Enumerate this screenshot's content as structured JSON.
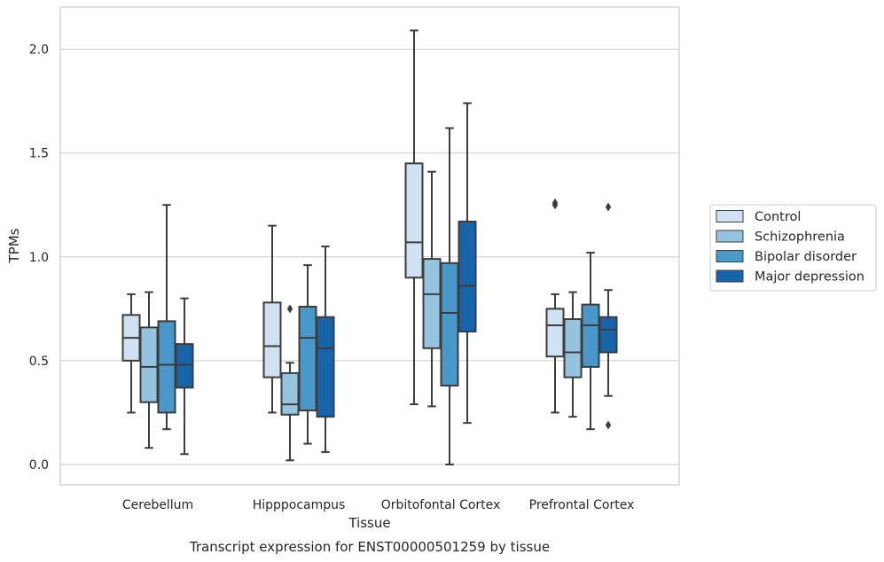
{
  "caption": "Transcript expression for ENST00000501259 by tissue",
  "chart_data": {
    "type": "box",
    "xlabel": "Tissue",
    "ylabel": "TPMs",
    "ylim": [
      -0.1,
      2.2
    ],
    "yticks": [
      "0.0",
      "0.5",
      "1.0",
      "1.5",
      "2.0"
    ],
    "grid": "horizontal",
    "legend_position": "right",
    "categories": [
      "Cerebellum",
      "Hipppocampus",
      "Orbitofontal Cortex",
      "Prefrontal Cortex"
    ],
    "series": [
      {
        "name": "Control",
        "color": "#d0e1f2",
        "boxes": [
          {
            "whislo": 0.25,
            "q1": 0.5,
            "med": 0.61,
            "q3": 0.72,
            "whishi": 0.82,
            "fliers": []
          },
          {
            "whislo": 0.25,
            "q1": 0.42,
            "med": 0.57,
            "q3": 0.78,
            "whishi": 1.15,
            "fliers": []
          },
          {
            "whislo": 0.29,
            "q1": 0.9,
            "med": 1.07,
            "q3": 1.45,
            "whishi": 2.09,
            "fliers": []
          },
          {
            "whislo": 0.25,
            "q1": 0.52,
            "med": 0.67,
            "q3": 0.75,
            "whishi": 0.82,
            "fliers": [
              1.25,
              1.26
            ]
          }
        ]
      },
      {
        "name": "Schizophrenia",
        "color": "#94c4df",
        "boxes": [
          {
            "whislo": 0.08,
            "q1": 0.3,
            "med": 0.47,
            "q3": 0.66,
            "whishi": 0.83,
            "fliers": []
          },
          {
            "whislo": 0.02,
            "q1": 0.24,
            "med": 0.29,
            "q3": 0.44,
            "whishi": 0.49,
            "fliers": [
              0.75
            ]
          },
          {
            "whislo": 0.28,
            "q1": 0.56,
            "med": 0.82,
            "q3": 0.99,
            "whishi": 1.41,
            "fliers": []
          },
          {
            "whislo": 0.23,
            "q1": 0.42,
            "med": 0.54,
            "q3": 0.7,
            "whishi": 0.83,
            "fliers": []
          }
        ]
      },
      {
        "name": "Bipolar disorder",
        "color": "#4a98c9",
        "boxes": [
          {
            "whislo": 0.17,
            "q1": 0.25,
            "med": 0.48,
            "q3": 0.69,
            "whishi": 1.25,
            "fliers": []
          },
          {
            "whislo": 0.1,
            "q1": 0.26,
            "med": 0.61,
            "q3": 0.76,
            "whishi": 0.96,
            "fliers": []
          },
          {
            "whislo": 0.0,
            "q1": 0.38,
            "med": 0.73,
            "q3": 0.97,
            "whishi": 1.62,
            "fliers": []
          },
          {
            "whislo": 0.17,
            "q1": 0.47,
            "med": 0.67,
            "q3": 0.77,
            "whishi": 1.02,
            "fliers": []
          }
        ]
      },
      {
        "name": "Major depression",
        "color": "#1764ab",
        "boxes": [
          {
            "whislo": 0.05,
            "q1": 0.37,
            "med": 0.48,
            "q3": 0.58,
            "whishi": 0.8,
            "fliers": []
          },
          {
            "whislo": 0.06,
            "q1": 0.23,
            "med": 0.56,
            "q3": 0.71,
            "whishi": 1.05,
            "fliers": []
          },
          {
            "whislo": 0.2,
            "q1": 0.64,
            "med": 0.86,
            "q3": 1.17,
            "whishi": 1.74,
            "fliers": []
          },
          {
            "whislo": 0.33,
            "q1": 0.54,
            "med": 0.65,
            "q3": 0.71,
            "whishi": 0.84,
            "fliers": [
              1.24,
              0.19
            ]
          }
        ]
      }
    ]
  }
}
